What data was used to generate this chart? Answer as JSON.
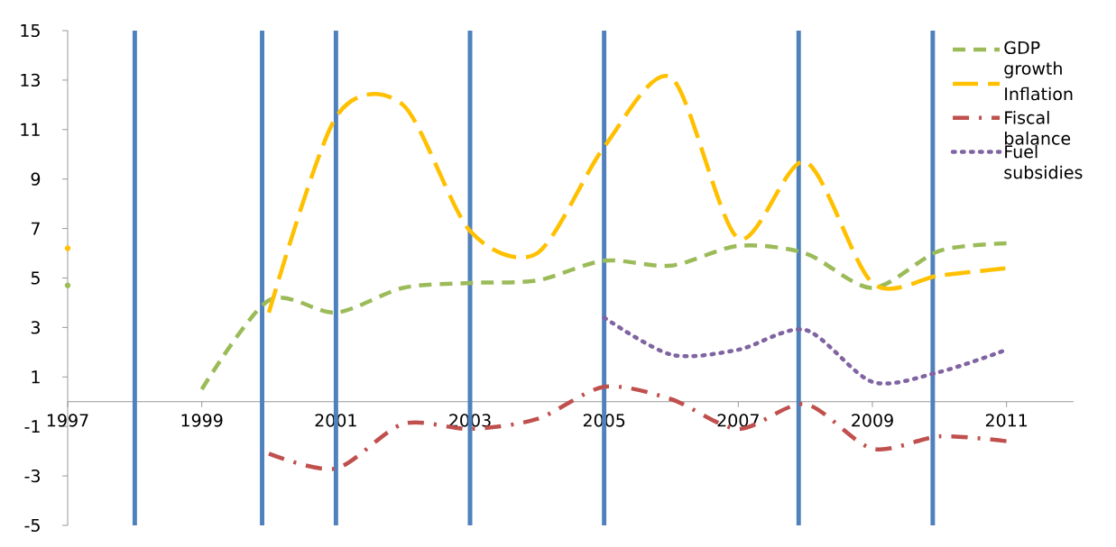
{
  "chart_data": {
    "type": "line",
    "x": [
      1997,
      1998,
      1999,
      2000,
      2001,
      2002,
      2003,
      2004,
      2005,
      2006,
      2007,
      2008,
      2009,
      2010,
      2011
    ],
    "series": [
      {
        "name": "GDP growth",
        "color": "#9bbb59",
        "line_style": "dashed",
        "values": [
          4.7,
          null,
          0.5,
          4.1,
          3.6,
          4.6,
          4.8,
          4.9,
          5.7,
          5.5,
          6.3,
          6.0,
          4.6,
          6.1,
          6.4
        ]
      },
      {
        "name": "Inflation",
        "color": "#ffc000",
        "line_style": "longdashed",
        "values": [
          6.2,
          null,
          null,
          3.6,
          11.5,
          12.0,
          6.9,
          6.0,
          10.3,
          13.1,
          6.6,
          9.7,
          4.8,
          5.1,
          5.4
        ]
      },
      {
        "name": "Fiscal balance",
        "color": "#c0504d",
        "line_style": "dashdot",
        "values": [
          null,
          null,
          null,
          -2.1,
          -2.7,
          -0.9,
          -1.1,
          -0.7,
          0.6,
          0.1,
          -1.1,
          -0.1,
          -1.9,
          -1.4,
          -1.6
        ]
      },
      {
        "name": "Fuel subsidies",
        "color": "#8064a2",
        "line_style": "dotted",
        "values": [
          null,
          null,
          null,
          null,
          null,
          null,
          null,
          null,
          3.4,
          1.9,
          2.1,
          2.9,
          0.8,
          1.2,
          2.1
        ]
      }
    ],
    "xlim": [
      1997,
      2012
    ],
    "xticks": [
      1997,
      1999,
      2001,
      2003,
      2005,
      2007,
      2009,
      2011
    ],
    "ylim": [
      -5,
      15
    ],
    "yticks": [
      -5,
      -3,
      -1,
      1,
      3,
      5,
      7,
      9,
      11,
      13,
      15
    ],
    "ref_lines": [
      {
        "axis": "x",
        "value": 1998.0,
        "color": "#4f81bd"
      },
      {
        "axis": "x",
        "value": 1999.9,
        "color": "#4f81bd"
      },
      {
        "axis": "x",
        "value": 2001.0,
        "color": "#4f81bd"
      },
      {
        "axis": "x",
        "value": 2003.0,
        "color": "#4f81bd"
      },
      {
        "axis": "x",
        "value": 2005.0,
        "color": "#4f81bd"
      },
      {
        "axis": "x",
        "value": 2007.9,
        "color": "#4f81bd"
      },
      {
        "axis": "x",
        "value": 2009.9,
        "color": "#4f81bd"
      }
    ],
    "legend": "top right",
    "grid": false
  }
}
